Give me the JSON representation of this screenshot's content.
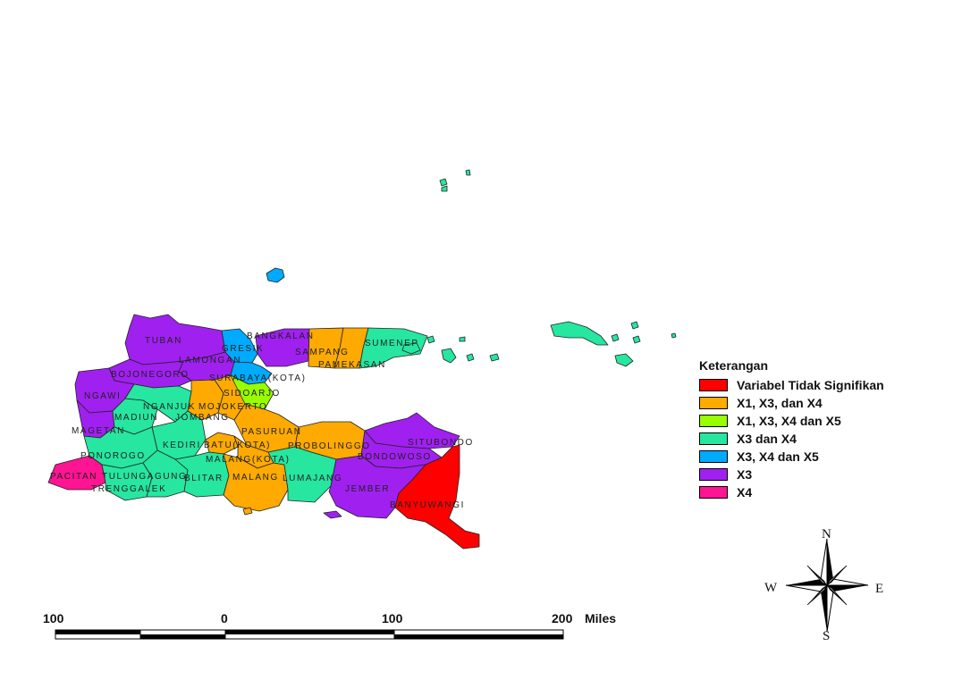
{
  "legend": {
    "title": "Keterangan",
    "items": [
      {
        "label": "Variabel Tidak Signifikan",
        "color": "#ff0000"
      },
      {
        "label": "X1, X3, dan X4",
        "color": "#ffaa00"
      },
      {
        "label": "X1, X3, X4 dan X5",
        "color": "#98ff00"
      },
      {
        "label": "X3 dan X4",
        "color": "#26e6a0"
      },
      {
        "label": "X3, X4 dan X5",
        "color": "#00aaff"
      },
      {
        "label": "X3",
        "color": "#a020f0"
      },
      {
        "label": "X4",
        "color": "#ff1493"
      }
    ]
  },
  "regions": [
    {
      "name": "TUBAN",
      "label": "TUBAN"
    },
    {
      "name": "BANGKALAN",
      "label": "BANGKALAN"
    },
    {
      "name": "GRESIK",
      "label": "GRESIK"
    },
    {
      "name": "SAMPANG",
      "label": "SAMPANG"
    },
    {
      "name": "SUMENEP",
      "label": "SUMENEP"
    },
    {
      "name": "LAMONGAN",
      "label": "LAMONGAN"
    },
    {
      "name": "PAMEKASAN",
      "label": "PAMEKASAN"
    },
    {
      "name": "BOJONEGORO",
      "label": "BOJONEGORO"
    },
    {
      "name": "SURABAYA",
      "label": "SURABAYA(KOTA)"
    },
    {
      "name": "NGAWI",
      "label": "NGAWI"
    },
    {
      "name": "SIDOARJO",
      "label": "SIDOARJO"
    },
    {
      "name": "NGANJUK",
      "label": "NGANJUK"
    },
    {
      "name": "MOJOKERTO",
      "label": "MOJOKERTO"
    },
    {
      "name": "MADIUN",
      "label": "MADIUN"
    },
    {
      "name": "JOMBANG",
      "label": "JOMBANG"
    },
    {
      "name": "MAGETAN",
      "label": "MAGETAN"
    },
    {
      "name": "PASURUAN",
      "label": "PASURUAN"
    },
    {
      "name": "SITUBONDO",
      "label": "SITUBONDO"
    },
    {
      "name": "KEDIRI",
      "label": "KEDIRI"
    },
    {
      "name": "BATU",
      "label": "BATU(KOTA)"
    },
    {
      "name": "PROBOLINGGO",
      "label": "PROBOLINGGO"
    },
    {
      "name": "PONOROGO",
      "label": "PONOROGO"
    },
    {
      "name": "BONDOWOSO",
      "label": "BONDOWOSO"
    },
    {
      "name": "MALANG_KOTA",
      "label": "MALANG(KOTA)"
    },
    {
      "name": "PACITAN",
      "label": "PACITAN"
    },
    {
      "name": "TULUNGAGUNG",
      "label": "TULUNGAGUNG"
    },
    {
      "name": "BLITAR",
      "label": "BLITAR"
    },
    {
      "name": "MALANG",
      "label": "MALANG"
    },
    {
      "name": "LUMAJANG",
      "label": "LUMAJANG"
    },
    {
      "name": "JEMBER",
      "label": "JEMBER"
    },
    {
      "name": "TRENGGALEK",
      "label": "TRENGGALEK"
    },
    {
      "name": "BANYUWANGI",
      "label": "BANYUWANGI"
    }
  ],
  "scale_bar": {
    "ticks": [
      "100",
      "0",
      "100",
      "200"
    ],
    "unit": "Miles"
  },
  "compass": {
    "n": "N",
    "s": "S",
    "e": "E",
    "w": "W"
  }
}
